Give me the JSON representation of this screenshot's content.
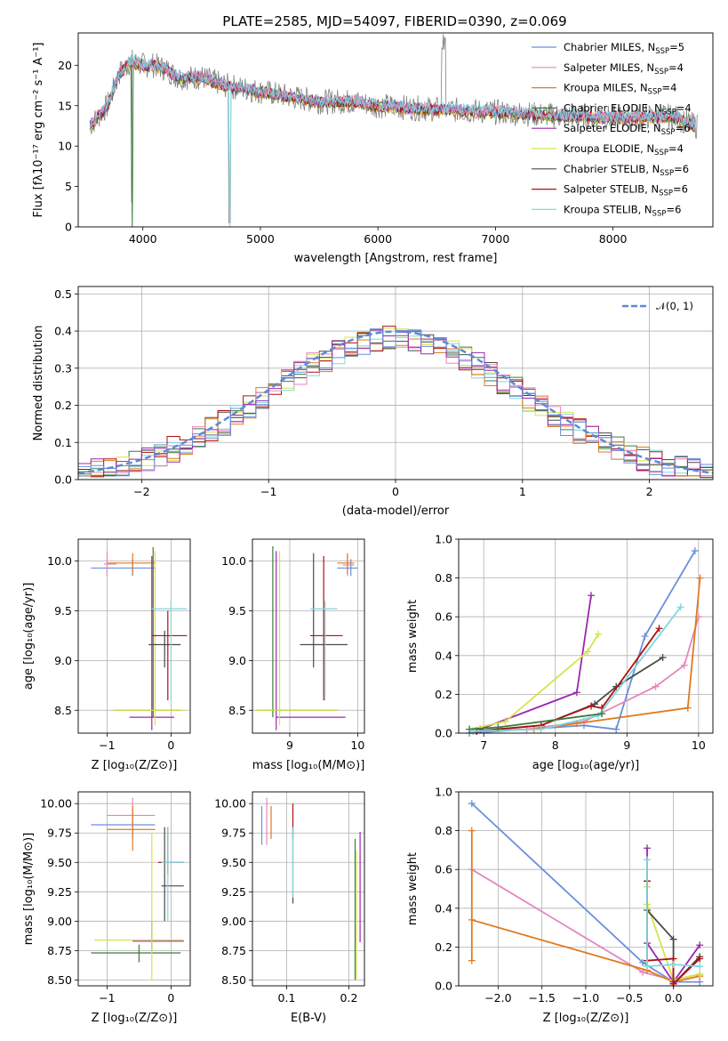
{
  "title": "PLATE=2585, MJD=54097, FIBERID=0390, z=0.069",
  "series": [
    {
      "label": "Chabrier MILES, N",
      "suffix": "=5",
      "color": "#6a8fdc"
    },
    {
      "label": "Salpeter MILES, N",
      "suffix": "=4",
      "color": "#e586c0"
    },
    {
      "label": "Kroupa MILES, N",
      "suffix": "=4",
      "color": "#e07a1f"
    },
    {
      "label": "Chabrier ELODIE, N",
      "suffix": "=4",
      "color": "#3a7d3a"
    },
    {
      "label": "Salpeter ELODIE, N",
      "suffix": "=6",
      "color": "#9b27b0"
    },
    {
      "label": "Kroupa ELODIE, N",
      "suffix": "=4",
      "color": "#d6e34a"
    },
    {
      "label": "Chabrier STELIB, N",
      "suffix": "=6",
      "color": "#4a4a4a"
    },
    {
      "label": "Salpeter STELIB, N",
      "suffix": "=6",
      "color": "#b01010"
    },
    {
      "label": "Kroupa STELIB, N",
      "suffix": "=6",
      "color": "#7fd8dc"
    }
  ],
  "legend_sub": "SSP",
  "spectrum": {
    "xlabel": "wavelength [Angstrom, rest frame]",
    "ylabel_html": "Flux [fλ10⁻¹⁷ erg cm⁻² s⁻¹ A⁻¹]",
    "xlim": [
      3450,
      8850
    ],
    "ylim": [
      0,
      24
    ],
    "xticks": [
      4000,
      5000,
      6000,
      7000,
      8000
    ],
    "yticks": [
      0,
      5,
      10,
      15,
      20
    ],
    "continuum": [
      [
        3550,
        12.5
      ],
      [
        3700,
        15
      ],
      [
        3800,
        19
      ],
      [
        3900,
        20.5
      ],
      [
        4000,
        20
      ],
      [
        4100,
        20
      ],
      [
        4200,
        19.5
      ],
      [
        4300,
        18.5
      ],
      [
        4500,
        18.5
      ],
      [
        4700,
        17.5
      ],
      [
        4900,
        17
      ],
      [
        5100,
        16.5
      ],
      [
        5300,
        16
      ],
      [
        5500,
        15.5
      ],
      [
        5800,
        15.5
      ],
      [
        6000,
        15
      ],
      [
        6300,
        14.7
      ],
      [
        6600,
        14.5
      ],
      [
        7000,
        14.2
      ],
      [
        7500,
        13.8
      ],
      [
        8000,
        13.5
      ],
      [
        8500,
        13.7
      ],
      [
        8700,
        12.5
      ]
    ]
  },
  "residuals": {
    "xlabel": "(data-model)/error",
    "ylabel": "Normed distribution",
    "legend": "𝒩(0, 1)",
    "xlim": [
      -2.5,
      2.5
    ],
    "ylim": [
      0,
      0.52
    ],
    "xticks": [
      -2,
      -1,
      0,
      1,
      2
    ],
    "yticks": [
      0.0,
      0.1,
      0.2,
      0.3,
      0.4,
      0.5
    ]
  },
  "chart_data": [
    {
      "type": "line",
      "title": "PLATE=2585, MJD=54097, FIBERID=0390, z=0.069",
      "xlabel": "wavelength [Angstrom, rest frame]",
      "ylabel": "Flux [fλ 10^-17 erg cm^-2 s^-1 A^-1]",
      "xlim": [
        3450,
        8850
      ],
      "ylim": [
        0,
        24
      ],
      "note": "spectrum with 9 overlaid model fits"
    },
    {
      "type": "line",
      "xlabel": "(data-model)/error",
      "ylabel": "Normed distribution",
      "xlim": [
        -2.5,
        2.5
      ],
      "ylim": [
        0,
        0.52
      ],
      "series": [
        {
          "name": "𝒩(0, 1)",
          "style": "dashed gaussian"
        }
      ]
    },
    {
      "type": "scatter",
      "xlabel": "Z [log10(Z/Z⊙)]",
      "ylabel": "age  [log10(age/yr)]",
      "xlim": [
        -1.45,
        0.3
      ],
      "ylim": [
        8.27,
        10.22
      ],
      "crosses": [
        {
          "s": 0,
          "x": -0.6,
          "y": 9.93,
          "xl": -1.25,
          "xh": -0.25,
          "yl": 9.85,
          "yh": 10.02
        },
        {
          "s": 1,
          "x": -1.0,
          "y": 9.97,
          "xl": -1.05,
          "xh": -0.85,
          "yl": 9.85,
          "yh": 10.1
        },
        {
          "s": 2,
          "x": -0.6,
          "y": 9.98,
          "xl": -1.0,
          "xh": -0.25,
          "yl": 9.87,
          "yh": 10.08
        },
        {
          "s": 3,
          "x": -0.28,
          "y": 8.5,
          "xl": -0.9,
          "xh": 0.15,
          "yl": 8.43,
          "yh": 10.14
        },
        {
          "s": 4,
          "x": -0.3,
          "y": 8.43,
          "xl": -0.65,
          "xh": 0.05,
          "yl": 8.3,
          "yh": 10.05
        },
        {
          "s": 5,
          "x": -0.25,
          "y": 8.5,
          "xl": -0.9,
          "xh": 0.2,
          "yl": 8.35,
          "yh": 10.1
        },
        {
          "s": 6,
          "x": -0.1,
          "y": 9.16,
          "xl": -0.35,
          "xh": 0.15,
          "yl": 8.93,
          "yh": 9.3
        },
        {
          "s": 7,
          "x": -0.05,
          "y": 9.25,
          "xl": -0.3,
          "xh": 0.25,
          "yl": 8.6,
          "yh": 9.5
        },
        {
          "s": 8,
          "x": 0.0,
          "y": 9.52,
          "xl": -0.3,
          "xh": 0.25,
          "yl": 8.6,
          "yh": 9.6
        }
      ]
    },
    {
      "type": "scatter",
      "xlabel": "mass [log10(M/M⊙)]",
      "ylabel": "",
      "xlim": [
        8.45,
        10.1
      ],
      "ylim": [
        8.27,
        10.22
      ],
      "crosses": [
        {
          "s": 0,
          "x": 9.9,
          "y": 9.93,
          "xl": 9.7,
          "xh": 10.0,
          "yl": 9.85,
          "yh": 10.02
        },
        {
          "s": 1,
          "x": 9.85,
          "y": 9.96,
          "xl": 9.78,
          "xh": 9.95,
          "yl": 9.85,
          "yh": 10.08
        },
        {
          "s": 2,
          "x": 9.85,
          "y": 9.98,
          "xl": 9.7,
          "xh": 9.95,
          "yl": 9.87,
          "yh": 10.07
        },
        {
          "s": 3,
          "x": 8.75,
          "y": 8.5,
          "xl": 8.5,
          "xh": 9.7,
          "yl": 8.43,
          "yh": 10.15
        },
        {
          "s": 4,
          "x": 8.8,
          "y": 8.43,
          "xl": 8.8,
          "xh": 9.82,
          "yl": 8.3,
          "yh": 10.1
        },
        {
          "s": 5,
          "x": 8.85,
          "y": 8.5,
          "xl": 8.5,
          "xh": 9.7,
          "yl": 8.35,
          "yh": 10.1
        },
        {
          "s": 6,
          "x": 9.35,
          "y": 9.16,
          "xl": 9.15,
          "xh": 9.85,
          "yl": 8.93,
          "yh": 10.08
        },
        {
          "s": 7,
          "x": 9.5,
          "y": 9.25,
          "xl": 9.3,
          "xh": 9.78,
          "yl": 8.6,
          "yh": 10.05
        },
        {
          "s": 8,
          "x": 9.52,
          "y": 9.52,
          "xl": 9.3,
          "xh": 9.7,
          "yl": 8.6,
          "yh": 9.6
        }
      ]
    },
    {
      "type": "line",
      "xlabel": "age  [log10(age/yr)]",
      "ylabel": "mass weight",
      "xlim": [
        6.65,
        10.2
      ],
      "ylim": [
        0,
        1
      ],
      "series": [
        {
          "s": 0,
          "points": [
            [
              6.8,
              0.0
            ],
            [
              7.6,
              0.02
            ],
            [
              8.4,
              0.04
            ],
            [
              8.85,
              0.02
            ],
            [
              9.25,
              0.5
            ],
            [
              9.95,
              0.94
            ]
          ]
        },
        {
          "s": 1,
          "points": [
            [
              6.85,
              0.01
            ],
            [
              7.6,
              0.02
            ],
            [
              8.4,
              0.06
            ],
            [
              9.4,
              0.24
            ],
            [
              9.8,
              0.35
            ],
            [
              10.0,
              0.6
            ]
          ]
        },
        {
          "s": 2,
          "points": [
            [
              6.85,
              0.01
            ],
            [
              7.7,
              0.02
            ],
            [
              8.3,
              0.05
            ],
            [
              9.85,
              0.13
            ],
            [
              10.02,
              0.8
            ]
          ]
        },
        {
          "s": 4,
          "points": [
            [
              6.95,
              0.02
            ],
            [
              8.3,
              0.21
            ],
            [
              8.5,
              0.71
            ]
          ]
        },
        {
          "s": 5,
          "points": [
            [
              6.8,
              0.02
            ],
            [
              7.3,
              0.06
            ],
            [
              8.45,
              0.42
            ],
            [
              8.6,
              0.51
            ]
          ]
        },
        {
          "s": 6,
          "points": [
            [
              6.9,
              0.01
            ],
            [
              7.8,
              0.04
            ],
            [
              8.55,
              0.15
            ],
            [
              8.85,
              0.24
            ],
            [
              9.5,
              0.39
            ]
          ]
        },
        {
          "s": 7,
          "points": [
            [
              6.9,
              0.01
            ],
            [
              7.8,
              0.04
            ],
            [
              8.5,
              0.14
            ],
            [
              8.65,
              0.13
            ],
            [
              9.45,
              0.54
            ]
          ]
        },
        {
          "s": 8,
          "points": [
            [
              6.85,
              0.01
            ],
            [
              7.8,
              0.02
            ],
            [
              8.6,
              0.09
            ],
            [
              9.75,
              0.65
            ]
          ]
        },
        {
          "s": 3,
          "points": [
            [
              6.8,
              0.02
            ],
            [
              7.2,
              0.03
            ],
            [
              8.65,
              0.1
            ]
          ]
        }
      ]
    },
    {
      "type": "scatter",
      "xlabel": "Z [log10(Z/Z⊙)]",
      "ylabel": "mass [log10(M/M⊙)]",
      "xlim": [
        -1.45,
        0.3
      ],
      "ylim": [
        8.45,
        10.1
      ],
      "crosses": [
        {
          "s": 0,
          "x": -0.6,
          "y": 9.82,
          "xl": -1.25,
          "xh": -0.25,
          "yl": 9.7,
          "yh": 9.95
        },
        {
          "s": 1,
          "x": -0.6,
          "y": 9.9,
          "xl": -1.0,
          "xh": -0.25,
          "yl": 9.8,
          "yh": 10.05
        },
        {
          "s": 2,
          "x": -0.6,
          "y": 9.78,
          "xl": -1.0,
          "xh": -0.25,
          "yl": 9.6,
          "yh": 9.98
        },
        {
          "s": 3,
          "x": -0.5,
          "y": 8.73,
          "xl": -1.25,
          "xh": 0.15,
          "yl": 8.65,
          "yh": 8.8
        },
        {
          "s": 4,
          "x": -0.3,
          "y": 8.83,
          "xl": -0.6,
          "xh": 0.2,
          "yl": 8.75,
          "yh": 9.0
        },
        {
          "s": 5,
          "x": -0.3,
          "y": 8.84,
          "xl": -1.2,
          "xh": 0.2,
          "yl": 8.5,
          "yh": 9.75
        },
        {
          "s": 6,
          "x": -0.1,
          "y": 9.3,
          "xl": -0.15,
          "xh": 0.2,
          "yl": 9.0,
          "yh": 9.8
        },
        {
          "s": 7,
          "x": -0.05,
          "y": 9.5,
          "xl": -0.2,
          "xh": 0.2,
          "yl": 9.4,
          "yh": 9.8
        },
        {
          "s": 8,
          "x": -0.05,
          "y": 9.5,
          "xl": -0.15,
          "xh": 0.2,
          "yl": 9.0,
          "yh": 9.8
        }
      ]
    },
    {
      "type": "scatter",
      "xlabel": "E(B-V)",
      "ylabel": "",
      "xlim": [
        0.045,
        0.225
      ],
      "ylim": [
        8.45,
        10.1
      ],
      "crosses": [
        {
          "s": 0,
          "x": 0.06,
          "y": 9.82,
          "xl": 0.06,
          "xh": 0.06,
          "yl": 9.65,
          "yh": 9.98
        },
        {
          "s": 1,
          "x": 0.068,
          "y": 9.8,
          "xl": 0.068,
          "xh": 0.068,
          "yl": 9.65,
          "yh": 10.05
        },
        {
          "s": 2,
          "x": 0.075,
          "y": 9.78,
          "xl": 0.075,
          "xh": 0.075,
          "yl": 9.7,
          "yh": 9.98
        },
        {
          "s": 6,
          "x": 0.11,
          "y": 9.5,
          "xl": 0.11,
          "xh": 0.11,
          "yl": 9.15,
          "yh": 9.8
        },
        {
          "s": 7,
          "x": 0.11,
          "y": 9.8,
          "xl": 0.11,
          "xh": 0.11,
          "yl": 9.7,
          "yh": 10.0
        },
        {
          "s": 8,
          "x": 0.11,
          "y": 9.5,
          "xl": 0.11,
          "xh": 0.11,
          "yl": 9.2,
          "yh": 9.8
        },
        {
          "s": 3,
          "x": 0.21,
          "y": 8.7,
          "xl": 0.21,
          "xh": 0.21,
          "yl": 8.5,
          "yh": 9.7
        },
        {
          "s": 5,
          "x": 0.212,
          "y": 8.85,
          "xl": 0.212,
          "xh": 0.212,
          "yl": 8.5,
          "yh": 9.6
        },
        {
          "s": 4,
          "x": 0.218,
          "y": 9.3,
          "xl": 0.218,
          "xh": 0.218,
          "yl": 8.82,
          "yh": 9.76
        }
      ]
    },
    {
      "type": "line",
      "xlabel": "Z [log10(Z/Z⊙)]",
      "ylabel": "mass weight",
      "xlim": [
        -2.45,
        0.45
      ],
      "ylim": [
        0,
        1
      ],
      "series": [
        {
          "s": 0,
          "points": [
            [
              -2.3,
              0.94
            ],
            [
              -0.35,
              0.12
            ],
            [
              0.0,
              0.02
            ],
            [
              0.3,
              0.02
            ]
          ]
        },
        {
          "s": 1,
          "points": [
            [
              -2.3,
              0.6
            ],
            [
              -0.35,
              0.07
            ],
            [
              0.0,
              0.03
            ],
            [
              0.3,
              0.06
            ]
          ]
        },
        {
          "s": 2,
          "points": [
            [
              -2.3,
              0.8
            ],
            [
              -2.3,
              0.13
            ],
            [
              -2.3,
              0.34
            ],
            [
              -0.3,
              0.08
            ],
            [
              0.0,
              0.02
            ],
            [
              0.3,
              0.05
            ]
          ]
        },
        {
          "s": 4,
          "points": [
            [
              -0.3,
              0.71
            ],
            [
              -0.3,
              0.22
            ],
            [
              0.0,
              0.02
            ],
            [
              0.3,
              0.21
            ]
          ]
        },
        {
          "s": 5,
          "points": [
            [
              -0.3,
              0.51
            ],
            [
              -0.3,
              0.42
            ],
            [
              0.0,
              0.03
            ],
            [
              0.3,
              0.06
            ]
          ]
        },
        {
          "s": 6,
          "points": [
            [
              -0.3,
              0.54
            ],
            [
              -0.3,
              0.39
            ],
            [
              0.0,
              0.24
            ],
            [
              0.0,
              0.01
            ],
            [
              0.3,
              0.15
            ]
          ]
        },
        {
          "s": 7,
          "points": [
            [
              -0.3,
              0.54
            ],
            [
              -0.3,
              0.13
            ],
            [
              0.0,
              0.14
            ],
            [
              0.0,
              0.01
            ],
            [
              0.3,
              0.14
            ]
          ]
        },
        {
          "s": 8,
          "points": [
            [
              -0.3,
              0.65
            ],
            [
              -0.3,
              0.1
            ],
            [
              0.0,
              0.11
            ],
            [
              0.3,
              0.1
            ]
          ]
        }
      ]
    }
  ],
  "small_panels": {
    "zage": {
      "xlabel": "Z [log₁₀(Z/Z⊙)]",
      "ylabel": "age  [log₁₀(age/yr)]",
      "xticks": [
        -1,
        0
      ],
      "yticks": [
        "8.5",
        "9.0",
        "9.5",
        "10.0"
      ]
    },
    "massage": {
      "xlabel": "mass [log₁₀(M/M⊙)]",
      "xticks": [
        9,
        10
      ],
      "yticks": [
        "8.5",
        "9.0",
        "9.5",
        "10.0"
      ]
    },
    "agew": {
      "xlabel": "age  [log₁₀(age/yr)]",
      "ylabel": "mass weight",
      "xticks": [
        7,
        8,
        9,
        10
      ],
      "yticks": [
        "0.0",
        "0.2",
        "0.4",
        "0.6",
        "0.8",
        "1.0"
      ]
    },
    "zmass": {
      "xlabel": "Z [log₁₀(Z/Z⊙)]",
      "ylabel": "mass [log₁₀(M/M⊙)]",
      "xticks": [
        -1,
        0
      ],
      "yticks": [
        "8.50",
        "8.75",
        "9.00",
        "9.25",
        "9.50",
        "9.75",
        "10.00"
      ]
    },
    "ebvmass": {
      "xlabel": "E(B-V)",
      "xticks": [
        "0.1",
        "0.2"
      ],
      "yticks": [
        "8.50",
        "8.75",
        "9.00",
        "9.25",
        "9.50",
        "9.75",
        "10.00"
      ]
    },
    "zw": {
      "xlabel": "Z [log₁₀(Z/Z⊙)]",
      "ylabel": "mass weight",
      "xticks": [
        "−2.0",
        "−1.5",
        "−1.0",
        "−0.5",
        "0.0"
      ],
      "yticks": [
        "0.0",
        "0.2",
        "0.4",
        "0.6",
        "0.8",
        "1.0"
      ]
    }
  }
}
